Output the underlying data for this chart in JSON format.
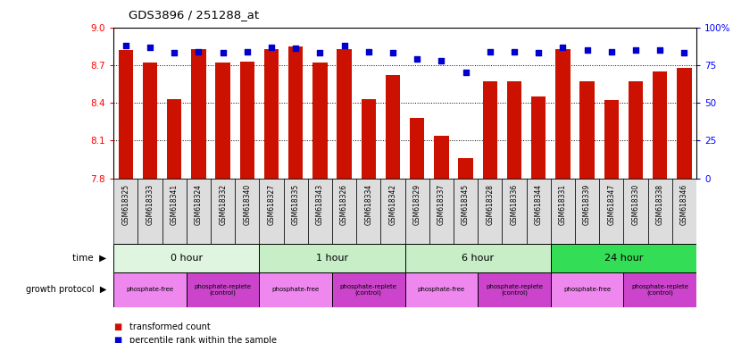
{
  "title": "GDS3896 / 251288_at",
  "samples": [
    "GSM618325",
    "GSM618333",
    "GSM618341",
    "GSM618324",
    "GSM618332",
    "GSM618340",
    "GSM618327",
    "GSM618335",
    "GSM618343",
    "GSM618326",
    "GSM618334",
    "GSM618342",
    "GSM618329",
    "GSM618337",
    "GSM618345",
    "GSM618328",
    "GSM618336",
    "GSM618344",
    "GSM618331",
    "GSM618339",
    "GSM618347",
    "GSM618330",
    "GSM618338",
    "GSM618346"
  ],
  "bar_values": [
    8.82,
    8.72,
    8.43,
    8.83,
    8.72,
    8.73,
    8.83,
    8.85,
    8.72,
    8.83,
    8.43,
    8.62,
    8.28,
    8.14,
    7.96,
    8.57,
    8.57,
    8.45,
    8.83,
    8.57,
    8.42,
    8.57,
    8.65,
    8.68
  ],
  "percentile_values": [
    88,
    87,
    83,
    84,
    83,
    84,
    87,
    86,
    83,
    88,
    84,
    83,
    79,
    78,
    70,
    84,
    84,
    83,
    87,
    85,
    84,
    85,
    85,
    83
  ],
  "ylim": [
    7.8,
    9.0
  ],
  "yticks": [
    7.8,
    8.1,
    8.4,
    8.7,
    9.0
  ],
  "y2lim": [
    0,
    100
  ],
  "y2ticks": [
    0,
    25,
    50,
    75,
    100
  ],
  "bar_color": "#cc1100",
  "square_color": "#0000cc",
  "time_groups": [
    {
      "label": "0 hour",
      "start": 0,
      "end": 6,
      "color": "#e0f5e0"
    },
    {
      "label": "1 hour",
      "start": 6,
      "end": 12,
      "color": "#c8eec8"
    },
    {
      "label": "6 hour",
      "start": 12,
      "end": 18,
      "color": "#c8eec8"
    },
    {
      "label": "24 hour",
      "start": 18,
      "end": 24,
      "color": "#33dd55"
    }
  ],
  "protocol_groups": [
    {
      "label": "phosphate-free",
      "start": 0,
      "end": 3,
      "color": "#ee88ee"
    },
    {
      "label": "phosphate-replete\n(control)",
      "start": 3,
      "end": 6,
      "color": "#cc44cc"
    },
    {
      "label": "phosphate-free",
      "start": 6,
      "end": 9,
      "color": "#ee88ee"
    },
    {
      "label": "phosphate-replete\n(control)",
      "start": 9,
      "end": 12,
      "color": "#cc44cc"
    },
    {
      "label": "phosphate-free",
      "start": 12,
      "end": 15,
      "color": "#ee88ee"
    },
    {
      "label": "phosphate-replete\n(control)",
      "start": 15,
      "end": 18,
      "color": "#cc44cc"
    },
    {
      "label": "phosphate-free",
      "start": 18,
      "end": 21,
      "color": "#ee88ee"
    },
    {
      "label": "phosphate-replete\n(control)",
      "start": 21,
      "end": 24,
      "color": "#cc44cc"
    }
  ]
}
